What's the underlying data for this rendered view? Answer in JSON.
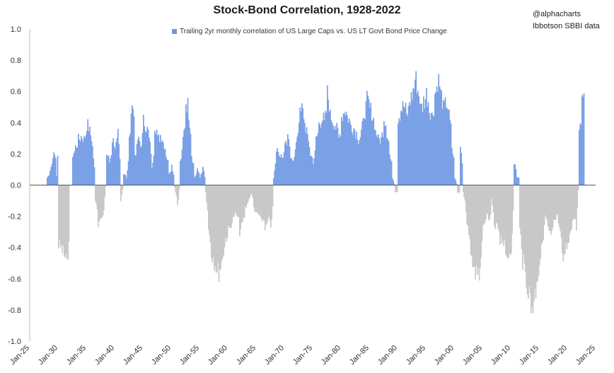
{
  "title": "Stock-Bond Correlation, 1928-2022",
  "legend": {
    "label": "Trailing 2yr monthly correlation of US Large Caps vs. US LT Govt Bond Price Change",
    "color": "#6f95dc"
  },
  "credits": [
    "@alphacharts",
    "Ibbotson SBBI data"
  ],
  "colors": {
    "positive": "#7aa0e6",
    "negative": "#c8c8c8",
    "positive_edge": "#4a78cf"
  },
  "chart_data": {
    "type": "bar",
    "title": "Stock-Bond Correlation, 1928-2022",
    "ylim": [
      -1.0,
      1.0
    ],
    "yticks": [
      "1.0",
      "0.8",
      "0.6",
      "0.4",
      "0.2",
      "0.0",
      "-0.2",
      "-0.4",
      "-0.6",
      "-0.8",
      "-1.0"
    ],
    "xticks": [
      "Jan-25",
      "Jan-30",
      "Jan-35",
      "Jan-40",
      "Jan-45",
      "Jan-50",
      "Jan-55",
      "Jan-60",
      "Jan-65",
      "Jan-70",
      "Jan-75",
      "Jan-80",
      "Jan-85",
      "Jan-90",
      "Jan-95",
      "Jan-00",
      "Jan-05",
      "Jan-10",
      "Jan-15",
      "Jan-20",
      "Jan-25"
    ],
    "xlim": [
      1925,
      2025
    ],
    "series": [
      {
        "name": "Trailing 2yr monthly correlation of US Large Caps vs. US LT Govt Bond Price Change",
        "points": [
          [
            1928.0,
            0.05
          ],
          [
            1928.5,
            0.1
          ],
          [
            1929.0,
            0.2
          ],
          [
            1929.5,
            0.18
          ],
          [
            1930.0,
            -0.4
          ],
          [
            1930.5,
            -0.42
          ],
          [
            1931.0,
            -0.46
          ],
          [
            1931.5,
            -0.55
          ],
          [
            1932.0,
            0.0
          ],
          [
            1932.5,
            0.2
          ],
          [
            1933.0,
            0.25
          ],
          [
            1933.5,
            0.3
          ],
          [
            1934.0,
            0.32
          ],
          [
            1934.5,
            0.3
          ],
          [
            1935.0,
            0.4
          ],
          [
            1935.5,
            0.35
          ],
          [
            1936.0,
            0.25
          ],
          [
            1936.5,
            -0.1
          ],
          [
            1937.0,
            -0.28
          ],
          [
            1937.5,
            -0.22
          ],
          [
            1938.0,
            -0.15
          ],
          [
            1938.5,
            0.2
          ],
          [
            1939.0,
            0.15
          ],
          [
            1939.5,
            0.3
          ],
          [
            1940.0,
            0.25
          ],
          [
            1940.5,
            0.33
          ],
          [
            1941.0,
            -0.1
          ],
          [
            1941.5,
            0.08
          ],
          [
            1942.0,
            0.05
          ],
          [
            1942.5,
            0.3
          ],
          [
            1943.0,
            0.6
          ],
          [
            1943.5,
            0.2
          ],
          [
            1944.0,
            0.3
          ],
          [
            1944.5,
            0.25
          ],
          [
            1945.0,
            0.42
          ],
          [
            1945.5,
            0.38
          ],
          [
            1946.0,
            0.3
          ],
          [
            1946.5,
            0.1
          ],
          [
            1947.0,
            0.4
          ],
          [
            1947.5,
            0.3
          ],
          [
            1948.0,
            0.33
          ],
          [
            1948.5,
            0.28
          ],
          [
            1949.0,
            0.2
          ],
          [
            1949.5,
            0.08
          ],
          [
            1950.0,
            0.13
          ],
          [
            1950.5,
            -0.02
          ],
          [
            1951.0,
            -0.15
          ],
          [
            1951.5,
            0.15
          ],
          [
            1952.0,
            0.3
          ],
          [
            1952.5,
            0.55
          ],
          [
            1953.0,
            0.48
          ],
          [
            1953.5,
            0.2
          ],
          [
            1954.0,
            0.05
          ],
          [
            1954.5,
            0.1
          ],
          [
            1955.0,
            0.05
          ],
          [
            1955.5,
            0.12
          ],
          [
            1956.0,
            -0.05
          ],
          [
            1956.5,
            -0.3
          ],
          [
            1957.0,
            -0.45
          ],
          [
            1957.5,
            -0.5
          ],
          [
            1958.0,
            -0.58
          ],
          [
            1958.5,
            -0.55
          ],
          [
            1959.0,
            -0.45
          ],
          [
            1959.5,
            -0.35
          ],
          [
            1960.0,
            -0.3
          ],
          [
            1960.5,
            -0.25
          ],
          [
            1961.0,
            -0.2
          ],
          [
            1961.5,
            -0.2
          ],
          [
            1962.0,
            -0.3
          ],
          [
            1962.5,
            -0.25
          ],
          [
            1963.0,
            -0.15
          ],
          [
            1963.5,
            -0.1
          ],
          [
            1964.0,
            -0.05
          ],
          [
            1964.5,
            -0.15
          ],
          [
            1965.0,
            -0.2
          ],
          [
            1965.5,
            -0.2
          ],
          [
            1966.0,
            -0.25
          ],
          [
            1966.5,
            -0.28
          ],
          [
            1967.0,
            -0.2
          ],
          [
            1967.5,
            -0.3
          ],
          [
            1968.0,
            0.05
          ],
          [
            1968.5,
            0.25
          ],
          [
            1969.0,
            0.2
          ],
          [
            1969.5,
            0.18
          ],
          [
            1970.0,
            0.25
          ],
          [
            1970.5,
            0.3
          ],
          [
            1971.0,
            0.2
          ],
          [
            1971.5,
            0.15
          ],
          [
            1972.0,
            0.3
          ],
          [
            1972.5,
            0.45
          ],
          [
            1973.0,
            0.5
          ],
          [
            1973.5,
            0.4
          ],
          [
            1974.0,
            0.3
          ],
          [
            1974.5,
            0.2
          ],
          [
            1975.0,
            0.15
          ],
          [
            1975.5,
            0.3
          ],
          [
            1976.0,
            0.4
          ],
          [
            1976.5,
            0.45
          ],
          [
            1977.0,
            0.4
          ],
          [
            1977.5,
            0.6
          ],
          [
            1978.0,
            0.45
          ],
          [
            1978.5,
            0.42
          ],
          [
            1979.0,
            0.38
          ],
          [
            1979.5,
            0.3
          ],
          [
            1980.0,
            0.45
          ],
          [
            1980.5,
            0.5
          ],
          [
            1981.0,
            0.45
          ],
          [
            1981.5,
            0.4
          ],
          [
            1982.0,
            0.38
          ],
          [
            1982.5,
            0.35
          ],
          [
            1983.0,
            0.3
          ],
          [
            1983.5,
            0.35
          ],
          [
            1984.0,
            0.48
          ],
          [
            1984.5,
            0.55
          ],
          [
            1985.0,
            0.5
          ],
          [
            1985.5,
            0.45
          ],
          [
            1986.0,
            0.35
          ],
          [
            1986.5,
            0.3
          ],
          [
            1987.0,
            0.3
          ],
          [
            1987.5,
            0.45
          ],
          [
            1988.0,
            0.35
          ],
          [
            1988.5,
            0.2
          ],
          [
            1989.0,
            0.05
          ],
          [
            1989.5,
            -0.05
          ],
          [
            1990.0,
            0.45
          ],
          [
            1990.5,
            0.5
          ],
          [
            1991.0,
            0.52
          ],
          [
            1991.5,
            0.45
          ],
          [
            1992.0,
            0.55
          ],
          [
            1992.5,
            0.6
          ],
          [
            1993.0,
            0.7
          ],
          [
            1993.5,
            0.62
          ],
          [
            1994.0,
            0.5
          ],
          [
            1994.5,
            0.55
          ],
          [
            1995.0,
            0.6
          ],
          [
            1995.5,
            0.5
          ],
          [
            1996.0,
            0.45
          ],
          [
            1996.5,
            0.6
          ],
          [
            1997.0,
            0.7
          ],
          [
            1997.5,
            0.6
          ],
          [
            1998.0,
            0.5
          ],
          [
            1998.5,
            0.55
          ],
          [
            1999.0,
            0.45
          ],
          [
            1999.5,
            0.25
          ],
          [
            2000.0,
            0.05
          ],
          [
            2000.5,
            -0.05
          ],
          [
            2001.0,
            0.28
          ],
          [
            2001.5,
            -0.05
          ],
          [
            2002.0,
            -0.2
          ],
          [
            2002.5,
            -0.35
          ],
          [
            2003.0,
            -0.5
          ],
          [
            2003.5,
            -0.55
          ],
          [
            2004.0,
            -0.65
          ],
          [
            2004.5,
            -0.5
          ],
          [
            2005.0,
            -0.3
          ],
          [
            2005.5,
            -0.2
          ],
          [
            2006.0,
            -0.25
          ],
          [
            2006.5,
            -0.1
          ],
          [
            2007.0,
            -0.3
          ],
          [
            2007.5,
            -0.25
          ],
          [
            2008.0,
            -0.35
          ],
          [
            2008.5,
            -0.35
          ],
          [
            2009.0,
            -0.5
          ],
          [
            2009.5,
            -0.45
          ],
          [
            2010.0,
            -0.4
          ],
          [
            2010.5,
            0.15
          ],
          [
            2011.0,
            0.05
          ],
          [
            2011.5,
            -0.3
          ],
          [
            2012.0,
            -0.5
          ],
          [
            2012.5,
            -0.6
          ],
          [
            2013.0,
            -0.7
          ],
          [
            2013.5,
            -0.8
          ],
          [
            2014.0,
            -0.75
          ],
          [
            2014.5,
            -0.6
          ],
          [
            2015.0,
            -0.5
          ],
          [
            2015.5,
            -0.35
          ],
          [
            2016.0,
            -0.2
          ],
          [
            2016.5,
            -0.3
          ],
          [
            2017.0,
            -0.35
          ],
          [
            2017.5,
            -0.25
          ],
          [
            2018.0,
            -0.2
          ],
          [
            2018.5,
            -0.3
          ],
          [
            2019.0,
            -0.5
          ],
          [
            2019.5,
            -0.45
          ],
          [
            2020.0,
            -0.35
          ],
          [
            2020.5,
            -0.3
          ],
          [
            2021.0,
            -0.2
          ],
          [
            2021.5,
            -0.3
          ],
          [
            2022.0,
            0.35
          ],
          [
            2022.5,
            0.55
          ]
        ]
      }
    ],
    "grid": false,
    "legend_position": "top-center"
  }
}
